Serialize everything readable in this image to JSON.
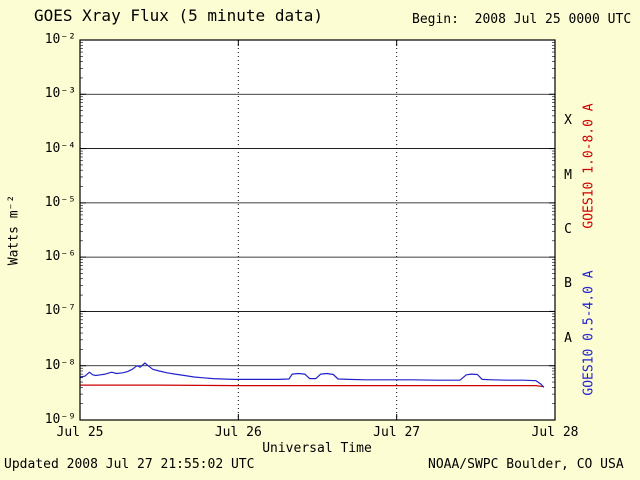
{
  "header": {
    "begin_label": "Begin:  2008 Jul 25 0000 UTC"
  },
  "footer": {
    "updated": "Updated 2008 Jul 27 21:55:02 UTC",
    "source": "NOAA/SWPC Boulder, CO USA"
  },
  "colors": {
    "background": "#fdfdd4",
    "plot_background": "#ffffff",
    "axis": "#000000",
    "long_channel": "#cc0000",
    "short_channel": "#2222cc"
  },
  "chart_data": {
    "type": "line",
    "title": "GOES Xray Flux (5 minute data)",
    "xlabel": "Universal Time",
    "ylabel": "Watts m⁻²",
    "y_scale": "log",
    "ylim_exp": [
      -9,
      -2
    ],
    "xlim_days": [
      0,
      3
    ],
    "grid": {
      "horizontal": "solid black line at every decade",
      "vertical": "dotted black line at each day boundary"
    },
    "legend_position": "right-rotated",
    "y_ticks": [
      {
        "label": "10⁻²",
        "exp": -2
      },
      {
        "label": "10⁻³",
        "exp": -3
      },
      {
        "label": "10⁻⁴",
        "exp": -4
      },
      {
        "label": "10⁻⁵",
        "exp": -5
      },
      {
        "label": "10⁻⁶",
        "exp": -6
      },
      {
        "label": "10⁻⁷",
        "exp": -7
      },
      {
        "label": "10⁻⁸",
        "exp": -8
      },
      {
        "label": "10⁻⁹",
        "exp": -9
      }
    ],
    "x_ticks": [
      {
        "label": "Jul 25",
        "day": 0
      },
      {
        "label": "Jul 26",
        "day": 1
      },
      {
        "label": "Jul 27",
        "day": 2
      },
      {
        "label": "Jul 28",
        "day": 3
      }
    ],
    "flare_classes": [
      {
        "label": "X",
        "between_exp": [
          -4,
          -3
        ]
      },
      {
        "label": "M",
        "between_exp": [
          -5,
          -4
        ]
      },
      {
        "label": "C",
        "between_exp": [
          -6,
          -5
        ]
      },
      {
        "label": "B",
        "between_exp": [
          -7,
          -6
        ]
      },
      {
        "label": "A",
        "between_exp": [
          -8,
          -7
        ]
      }
    ],
    "series": [
      {
        "name": "GOES10 1.0-8.0 A",
        "color": "#cc0000",
        "points": [
          [
            0.0,
            4.4e-09
          ],
          [
            0.5,
            4.4e-09
          ],
          [
            1.0,
            4.3e-09
          ],
          [
            1.5,
            4.3e-09
          ],
          [
            2.0,
            4.3e-09
          ],
          [
            2.5,
            4.3e-09
          ],
          [
            2.88,
            4.3e-09
          ],
          [
            2.93,
            4.1e-09
          ]
        ]
      },
      {
        "name": "GOES10 0.5-4.0 A",
        "color": "#2222cc",
        "points": [
          [
            0.0,
            6.2e-09
          ],
          [
            0.03,
            6.4e-09
          ],
          [
            0.06,
            7.6e-09
          ],
          [
            0.08,
            6.8e-09
          ],
          [
            0.1,
            6.6e-09
          ],
          [
            0.13,
            6.8e-09
          ],
          [
            0.16,
            7e-09
          ],
          [
            0.2,
            7.6e-09
          ],
          [
            0.23,
            7.2e-09
          ],
          [
            0.27,
            7.4e-09
          ],
          [
            0.3,
            7.8e-09
          ],
          [
            0.33,
            8.6e-09
          ],
          [
            0.36,
            1e-08
          ],
          [
            0.38,
            9.4e-09
          ],
          [
            0.41,
            1.12e-08
          ],
          [
            0.43,
            1e-08
          ],
          [
            0.46,
            8.6e-09
          ],
          [
            0.5,
            8e-09
          ],
          [
            0.55,
            7.4e-09
          ],
          [
            0.6,
            7e-09
          ],
          [
            0.66,
            6.6e-09
          ],
          [
            0.72,
            6.2e-09
          ],
          [
            0.78,
            6e-09
          ],
          [
            0.84,
            5.8e-09
          ],
          [
            0.9,
            5.7e-09
          ],
          [
            0.97,
            5.6e-09
          ],
          [
            1.05,
            5.6e-09
          ],
          [
            1.15,
            5.6e-09
          ],
          [
            1.25,
            5.6e-09
          ],
          [
            1.32,
            5.7e-09
          ],
          [
            1.34,
            7e-09
          ],
          [
            1.38,
            7.2e-09
          ],
          [
            1.42,
            7e-09
          ],
          [
            1.45,
            5.8e-09
          ],
          [
            1.49,
            5.8e-09
          ],
          [
            1.52,
            7e-09
          ],
          [
            1.56,
            7.2e-09
          ],
          [
            1.6,
            6.9e-09
          ],
          [
            1.63,
            5.7e-09
          ],
          [
            1.7,
            5.6e-09
          ],
          [
            1.8,
            5.5e-09
          ],
          [
            1.95,
            5.5e-09
          ],
          [
            2.1,
            5.5e-09
          ],
          [
            2.25,
            5.4e-09
          ],
          [
            2.4,
            5.4e-09
          ],
          [
            2.44,
            6.8e-09
          ],
          [
            2.47,
            7e-09
          ],
          [
            2.51,
            6.9e-09
          ],
          [
            2.54,
            5.6e-09
          ],
          [
            2.6,
            5.5e-09
          ],
          [
            2.7,
            5.4e-09
          ],
          [
            2.8,
            5.4e-09
          ],
          [
            2.88,
            5.3e-09
          ],
          [
            2.91,
            4.6e-09
          ],
          [
            2.93,
            4e-09
          ]
        ]
      }
    ]
  }
}
